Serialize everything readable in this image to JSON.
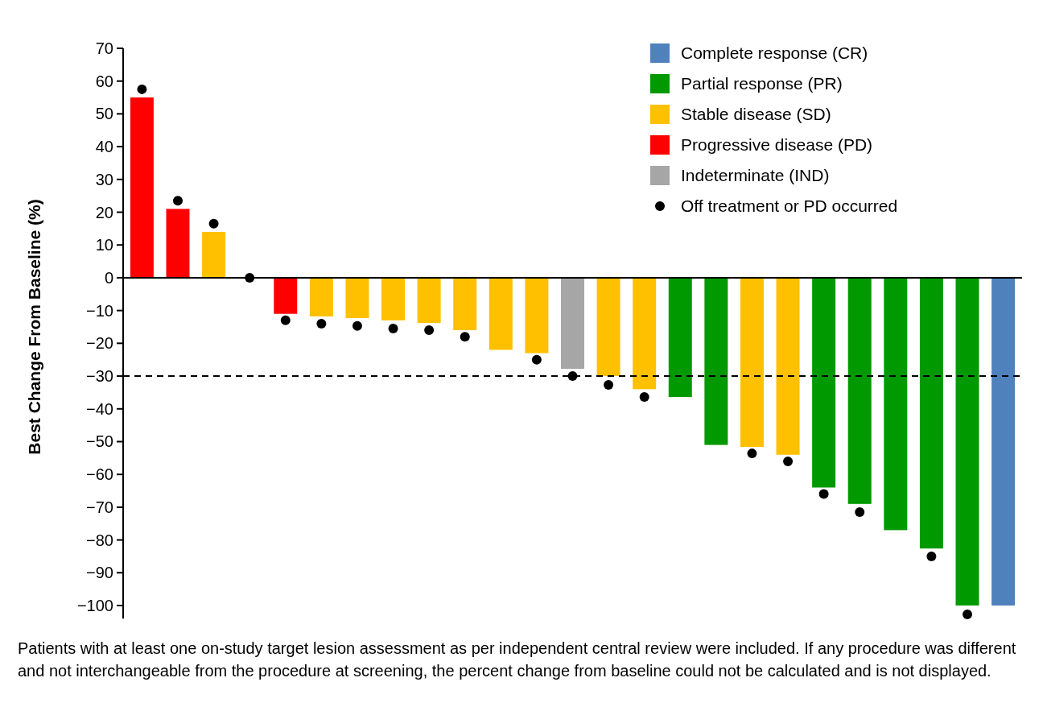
{
  "chart_data": {
    "type": "bar",
    "ylabel": "Best Change From Baseline (%)",
    "categories": [
      null,
      null,
      null,
      null,
      null,
      null,
      null,
      null,
      null,
      null,
      null,
      null,
      null,
      null,
      null,
      null,
      null,
      null,
      null,
      null,
      null,
      null,
      null,
      null,
      null
    ],
    "series": [
      {
        "name": "Complete response (CR)",
        "color": "#4f81bd",
        "values": [
          null,
          null,
          null,
          null,
          null,
          null,
          null,
          null,
          null,
          null,
          null,
          null,
          null,
          null,
          null,
          null,
          null,
          null,
          null,
          null,
          null,
          null,
          null,
          null,
          -100
        ]
      },
      {
        "name": "Partial response (PR)",
        "color": "#009900",
        "values": [
          null,
          null,
          null,
          null,
          null,
          null,
          null,
          null,
          null,
          null,
          null,
          null,
          null,
          null,
          null,
          -36.4,
          -51,
          null,
          null,
          -64,
          -69,
          -77,
          -82.6,
          -100,
          null
        ]
      },
      {
        "name": "Stable disease (SD)",
        "color": "#ffc000",
        "values": [
          null,
          null,
          14,
          null,
          null,
          -11.8,
          -12.3,
          -13,
          -13.8,
          -16,
          -22,
          -23,
          null,
          -30,
          -34,
          null,
          null,
          -51.6,
          -54,
          null,
          null,
          null,
          null,
          null,
          null
        ]
      },
      {
        "name": "Progressive disease (PD)",
        "color": "#ff0000",
        "values": [
          55,
          21,
          null,
          null,
          -11,
          null,
          null,
          null,
          null,
          null,
          null,
          null,
          null,
          null,
          null,
          null,
          null,
          null,
          null,
          null,
          null,
          null,
          null,
          null,
          null
        ]
      },
      {
        "name": "Indeterminate (IND)",
        "color": "#a6a6a6",
        "values": [
          null,
          null,
          null,
          null,
          null,
          null,
          null,
          null,
          null,
          null,
          null,
          null,
          -27.8,
          null,
          null,
          null,
          null,
          null,
          null,
          null,
          null,
          null,
          null,
          null,
          null
        ]
      },
      {
        "name": "Off treatment or PD occurred",
        "type": "scatter",
        "color": "#000000",
        "marker": "circle",
        "values": [
          57.5,
          23.5,
          16.5,
          0,
          -13,
          -14,
          -14.7,
          -15.5,
          -16,
          -18,
          null,
          -25,
          -30,
          -32.7,
          -36.4,
          null,
          null,
          -53.6,
          -56,
          -66,
          -71.5,
          null,
          -85,
          -102.7,
          null
        ]
      }
    ],
    "ylim": [
      -104,
      70
    ],
    "yticks": [
      70,
      60,
      50,
      40,
      30,
      20,
      10,
      0,
      {
        "value": -10,
        "label": "−10"
      },
      {
        "value": -20,
        "label": "−20"
      },
      {
        "value": -30,
        "label": "−30"
      },
      {
        "value": -40,
        "label": "−40"
      },
      {
        "value": -50,
        "label": "−50"
      },
      {
        "value": -60,
        "label": "−60"
      },
      {
        "value": -70,
        "label": "−70"
      },
      {
        "value": -80,
        "label": "−80"
      },
      {
        "value": -90,
        "label": "−90"
      },
      {
        "value": -100,
        "label": "−100"
      }
    ],
    "ref_lines": [
      {
        "axis": "y",
        "value": -30,
        "line_style": "dashed",
        "color": "#000000"
      }
    ],
    "legend": "top right",
    "grid": false,
    "annotations": [
      "Patients with at least one on-study target lesion assessment as per independent central review were included. If any procedure was different and not interchangeable from the procedure at screening, the percent change from baseline could not be calculated and is not displayed."
    ]
  }
}
